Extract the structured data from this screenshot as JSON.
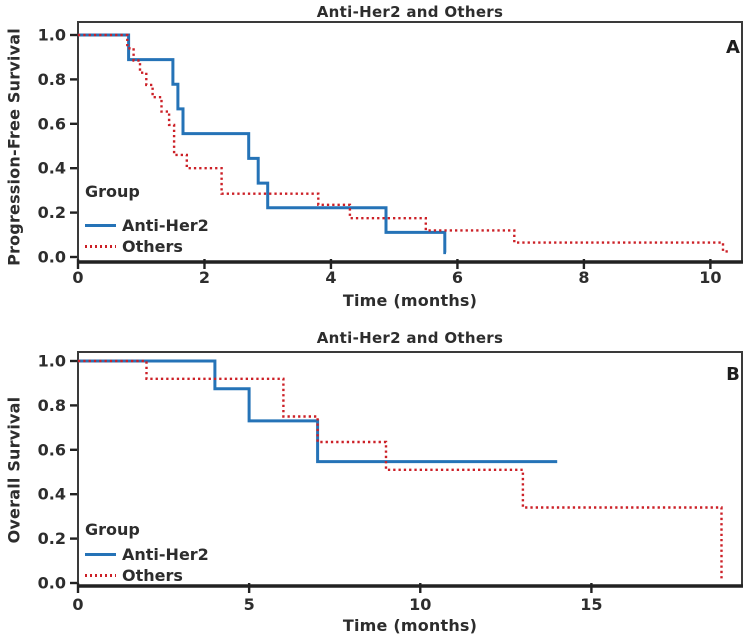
{
  "colors": {
    "anti_her2": "#2573b7",
    "others": "#cc2027",
    "text": "#2d2d2d",
    "frame": "#3a3a3a",
    "background": "#ffffff"
  },
  "chart_data": [
    {
      "id": "panel-a",
      "type": "line",
      "subtype": "kaplan-meier-step",
      "title": "Anti-Her2 and Others",
      "panel_label": "A",
      "xlabel": "Time (months)",
      "ylabel": "Progression-Free Survival",
      "legend_title": "Group",
      "legend_position": "lower-left-inside",
      "grid": false,
      "xlim": [
        0,
        10.5
      ],
      "ylim": [
        0,
        1.0
      ],
      "xticks": [
        0,
        2,
        4,
        6,
        8,
        10
      ],
      "ytick_labels": [
        "1.0",
        "0.8",
        "0.6",
        "0.4",
        "0.2",
        "0.0"
      ],
      "series": [
        {
          "name": "Anti-Her2",
          "style": "solid",
          "color": "#2573b7",
          "steps": [
            [
              0,
              1.0
            ],
            [
              0.8,
              0.889
            ],
            [
              1.5,
              0.778
            ],
            [
              1.58,
              0.667
            ],
            [
              1.66,
              0.556
            ],
            [
              2.7,
              0.444
            ],
            [
              2.85,
              0.333
            ],
            [
              3.0,
              0.222
            ],
            [
              4.87,
              0.111
            ],
            [
              5.8,
              0.02
            ]
          ],
          "end_t": 5.82
        },
        {
          "name": "Others",
          "style": "dotted",
          "color": "#cc2027",
          "steps": [
            [
              0,
              1.0
            ],
            [
              0.78,
              0.94
            ],
            [
              0.88,
              0.885
            ],
            [
              0.98,
              0.83
            ],
            [
              1.08,
              0.775
            ],
            [
              1.18,
              0.72
            ],
            [
              1.32,
              0.655
            ],
            [
              1.44,
              0.595
            ],
            [
              1.52,
              0.46
            ],
            [
              1.72,
              0.4
            ],
            [
              2.27,
              0.285
            ],
            [
              3.8,
              0.235
            ],
            [
              4.3,
              0.175
            ],
            [
              5.5,
              0.12
            ],
            [
              6.9,
              0.065
            ],
            [
              10.2,
              0.025
            ]
          ],
          "end_t": 10.28
        }
      ]
    },
    {
      "id": "panel-b",
      "type": "line",
      "subtype": "kaplan-meier-step",
      "title": "Anti-Her2 and Others",
      "panel_label": "B",
      "xlabel": "Time (months)",
      "ylabel": "Overall Survival",
      "legend_title": "Group",
      "legend_position": "lower-left-inside",
      "grid": false,
      "xlim": [
        0,
        19.4
      ],
      "ylim": [
        0,
        1.0
      ],
      "xticks": [
        0,
        5,
        10,
        15
      ],
      "ytick_labels": [
        "1.0",
        "0.8",
        "0.6",
        "0.4",
        "0.2",
        "0.0"
      ],
      "series": [
        {
          "name": "Anti-Her2",
          "style": "solid",
          "color": "#2573b7",
          "steps": [
            [
              0,
              1.0
            ],
            [
              4,
              0.875
            ],
            [
              5,
              0.73
            ],
            [
              7,
              0.547
            ]
          ],
          "end_t": 14.0
        },
        {
          "name": "Others",
          "style": "dotted",
          "color": "#cc2027",
          "steps": [
            [
              0,
              1.0
            ],
            [
              2,
              0.92
            ],
            [
              6,
              0.75
            ],
            [
              7,
              0.635
            ],
            [
              9,
              0.51
            ],
            [
              13,
              0.34
            ],
            [
              18.8,
              0.02
            ]
          ],
          "end_t": 18.85
        }
      ]
    }
  ]
}
